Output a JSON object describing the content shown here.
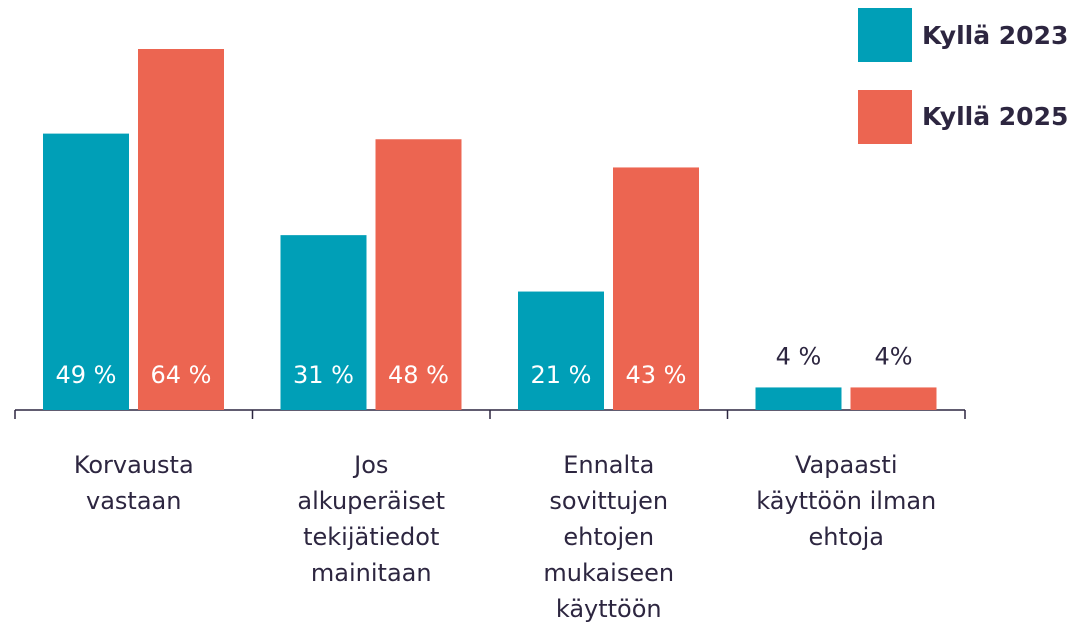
{
  "chart_data": {
    "type": "bar",
    "categories": [
      "Korvausta\nvastaan",
      "Jos\nalkuperäiset\ntekijätiedot\nmainitaan",
      "Ennalta\nsovittujen\nehtojen\nmukaiseen\nkäyttöön",
      "Vapaasti\nkäyttöön ilman\nehtoja"
    ],
    "series": [
      {
        "name": "Kyllä 2023",
        "color": "#009fb7",
        "values": [
          49,
          31,
          21,
          4
        ],
        "value_labels": [
          "49 %",
          "31 %",
          "21 %",
          "4 %"
        ]
      },
      {
        "name": "Kyllä 2025",
        "color": "#ec6551",
        "values": [
          64,
          48,
          43,
          4
        ],
        "value_labels": [
          "64 %",
          "48 %",
          "43 %",
          "4%"
        ]
      }
    ],
    "ylim": [
      0,
      64
    ]
  }
}
